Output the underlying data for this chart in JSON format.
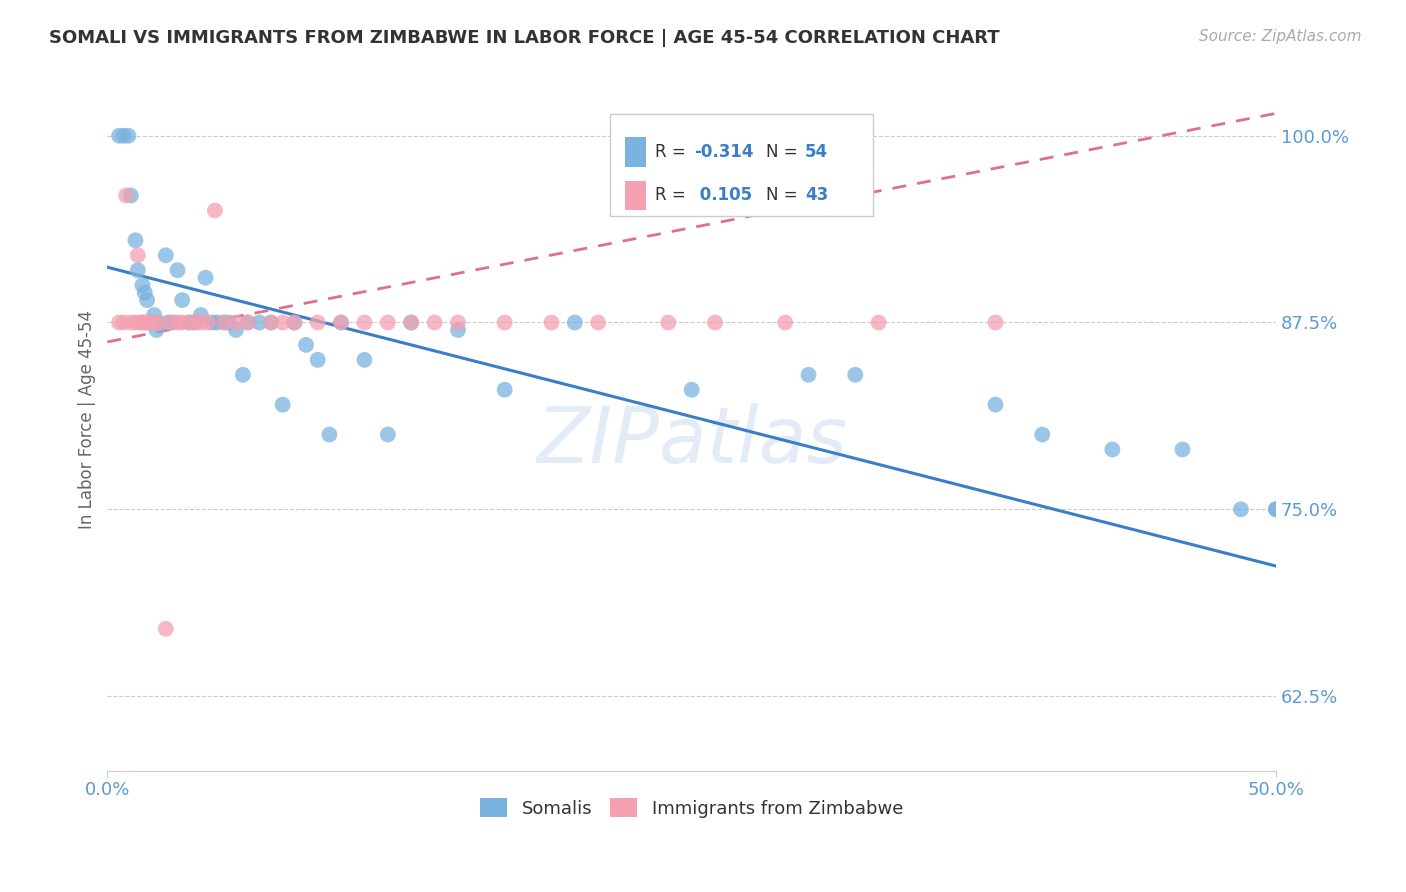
{
  "title": "SOMALI VS IMMIGRANTS FROM ZIMBABWE IN LABOR FORCE | AGE 45-54 CORRELATION CHART",
  "source": "Source: ZipAtlas.com",
  "ylabel": "In Labor Force | Age 45-54",
  "yticks": [
    0.625,
    0.75,
    0.875,
    1.0
  ],
  "ytick_labels": [
    "62.5%",
    "75.0%",
    "87.5%",
    "100.0%"
  ],
  "xlim": [
    0.0,
    0.5
  ],
  "ylim": [
    0.575,
    1.045
  ],
  "color_somali": "#7ab3e0",
  "color_zimbabwe": "#f4a0b0",
  "color_trend_somali": "#3a7ec8",
  "color_trend_zimbabwe": "#e0708a",
  "background_color": "#ffffff",
  "somali_x": [
    0.005,
    0.007,
    0.009,
    0.01,
    0.012,
    0.013,
    0.015,
    0.016,
    0.017,
    0.018,
    0.02,
    0.02,
    0.021,
    0.022,
    0.025,
    0.026,
    0.028,
    0.03,
    0.032,
    0.035,
    0.037,
    0.04,
    0.042,
    0.045,
    0.047,
    0.05,
    0.052,
    0.055,
    0.058,
    0.06,
    0.065,
    0.07,
    0.075,
    0.08,
    0.085,
    0.09,
    0.095,
    0.1,
    0.11,
    0.12,
    0.13,
    0.15,
    0.17,
    0.2,
    0.25,
    0.3,
    0.32,
    0.38,
    0.4,
    0.43,
    0.46,
    0.485,
    0.5,
    0.5
  ],
  "somali_y": [
    1.0,
    1.0,
    1.0,
    0.96,
    0.93,
    0.91,
    0.9,
    0.895,
    0.89,
    0.875,
    0.88,
    0.875,
    0.87,
    0.875,
    0.92,
    0.875,
    0.875,
    0.91,
    0.89,
    0.875,
    0.875,
    0.88,
    0.905,
    0.875,
    0.875,
    0.875,
    0.875,
    0.87,
    0.84,
    0.875,
    0.875,
    0.875,
    0.82,
    0.875,
    0.86,
    0.85,
    0.8,
    0.875,
    0.85,
    0.8,
    0.875,
    0.87,
    0.83,
    0.875,
    0.83,
    0.84,
    0.84,
    0.82,
    0.8,
    0.79,
    0.79,
    0.75,
    0.75,
    0.75
  ],
  "zimbabwe_x": [
    0.005,
    0.007,
    0.008,
    0.01,
    0.012,
    0.013,
    0.014,
    0.015,
    0.016,
    0.017,
    0.018,
    0.02,
    0.022,
    0.025,
    0.027,
    0.03,
    0.032,
    0.035,
    0.038,
    0.04,
    0.043,
    0.046,
    0.05,
    0.055,
    0.06,
    0.07,
    0.075,
    0.08,
    0.09,
    0.1,
    0.11,
    0.12,
    0.13,
    0.14,
    0.15,
    0.17,
    0.19,
    0.21,
    0.24,
    0.26,
    0.29,
    0.33,
    0.38
  ],
  "zimbabwe_y": [
    0.875,
    0.875,
    0.96,
    0.875,
    0.875,
    0.92,
    0.875,
    0.875,
    0.875,
    0.875,
    0.875,
    0.875,
    0.875,
    0.67,
    0.875,
    0.875,
    0.875,
    0.875,
    0.875,
    0.875,
    0.875,
    0.95,
    0.875,
    0.875,
    0.875,
    0.875,
    0.875,
    0.875,
    0.875,
    0.875,
    0.875,
    0.875,
    0.875,
    0.875,
    0.875,
    0.875,
    0.875,
    0.875,
    0.875,
    0.875,
    0.875,
    0.875,
    0.875
  ],
  "trend_somali_x0": 0.0,
  "trend_somali_y0": 0.912,
  "trend_somali_x1": 0.5,
  "trend_somali_y1": 0.712,
  "trend_zimbabwe_x0": 0.0,
  "trend_zimbabwe_y0": 0.862,
  "trend_zimbabwe_x1": 0.5,
  "trend_zimbabwe_y1": 1.015
}
